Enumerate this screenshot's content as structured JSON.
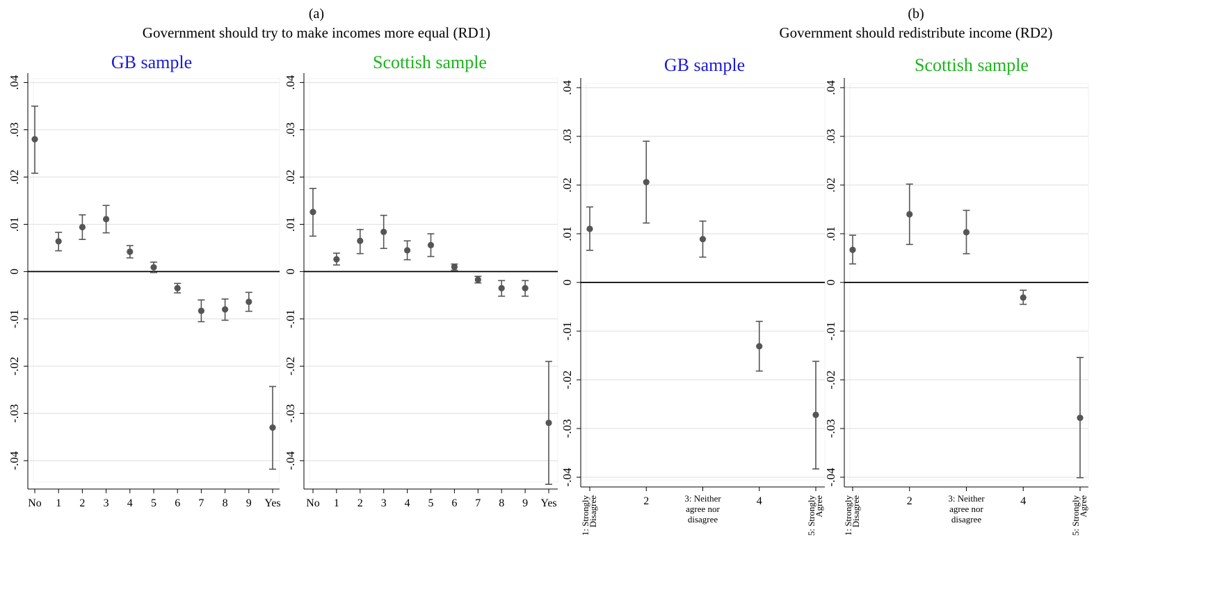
{
  "figure": {
    "panels": [
      {
        "letter": "(a)",
        "subtitle": "Government should try to make incomes more equal (RD1)"
      },
      {
        "letter": "(b)",
        "subtitle": "Government should redistribute income (RD2)"
      }
    ]
  },
  "colors": {
    "gb": "#1a1adb",
    "scottish": "#1bb51b",
    "marker": "#555555",
    "grid": "#e3e3e3",
    "axis": "#000000"
  },
  "chart_data": [
    {
      "type": "scatter",
      "title": "GB sample",
      "title_color": "#1a1adb",
      "categories": [
        "No",
        "1",
        "2",
        "3",
        "4",
        "5",
        "6",
        "7",
        "8",
        "9",
        "Yes"
      ],
      "values": [
        0.028,
        0.0064,
        0.0094,
        0.0111,
        0.0042,
        0.0009,
        -0.0035,
        -0.0083,
        -0.008,
        -0.0064,
        -0.033
      ],
      "ci_low": [
        0.0208,
        0.0044,
        0.0068,
        0.0082,
        0.0029,
        -0.0002,
        -0.0045,
        -0.0106,
        -0.0103,
        -0.0084,
        -0.0418
      ],
      "ci_high": [
        0.035,
        0.0083,
        0.012,
        0.014,
        0.0055,
        0.002,
        -0.0025,
        -0.006,
        -0.0058,
        -0.0044,
        -0.0243
      ],
      "yticks": [
        ".04",
        ".03",
        ".02",
        ".01",
        "0",
        "-.01",
        "-.02",
        "-.03",
        "-.04"
      ],
      "ylim": [
        -0.046,
        0.042
      ],
      "grid": true,
      "zero_line": true
    },
    {
      "type": "scatter",
      "title": "Scottish sample",
      "title_color": "#1bb51b",
      "categories": [
        "No",
        "1",
        "2",
        "3",
        "4",
        "5",
        "6",
        "7",
        "8",
        "9",
        "Yes"
      ],
      "values": [
        0.0126,
        0.0026,
        0.0065,
        0.0084,
        0.0045,
        0.0056,
        0.001,
        -0.0017,
        -0.0035,
        -0.0035,
        -0.032
      ],
      "ci_low": [
        0.0075,
        0.0014,
        0.0038,
        0.0049,
        0.0025,
        0.0032,
        0.0003,
        -0.0024,
        -0.0052,
        -0.0052,
        -0.045
      ],
      "ci_high": [
        0.0176,
        0.0039,
        0.0089,
        0.0119,
        0.0065,
        0.008,
        0.0016,
        -0.001,
        -0.0019,
        -0.0019,
        -0.019
      ],
      "yticks": [
        ".04",
        ".03",
        ".02",
        ".01",
        "0",
        "-.01",
        "-.02",
        "-.03",
        "-.04"
      ],
      "ylim": [
        -0.046,
        0.042
      ],
      "grid": true,
      "zero_line": true
    },
    {
      "type": "scatter",
      "title": "GB sample",
      "title_color": "#1a1adb",
      "categories": [
        "1: Strongly Disagree",
        "2",
        "3: Neither agree nor disagree",
        "4",
        "5: Strongly Agree"
      ],
      "values": [
        0.011,
        0.0206,
        0.0089,
        -0.0131,
        -0.0272
      ],
      "ci_low": [
        0.0066,
        0.0122,
        0.0052,
        -0.0182,
        -0.0383
      ],
      "ci_high": [
        0.0155,
        0.029,
        0.0126,
        -0.008,
        -0.0162
      ],
      "yticks": [
        ".04",
        ".03",
        ".02",
        ".01",
        "0",
        "-.01",
        "-.02",
        "-.03",
        "-.04"
      ],
      "ylim": [
        -0.042,
        0.042
      ],
      "grid": true,
      "zero_line": true
    },
    {
      "type": "scatter",
      "title": "Scottish sample",
      "title_color": "#1bb51b",
      "categories": [
        "1: Strongly Disagree",
        "2",
        "3: Neither agree nor disagree",
        "4",
        "5: Strongly Agree"
      ],
      "values": [
        0.0067,
        0.014,
        0.0103,
        -0.0031,
        -0.0278
      ],
      "ci_low": [
        0.0038,
        0.0078,
        0.0059,
        -0.0045,
        -0.0401
      ],
      "ci_high": [
        0.0097,
        0.0202,
        0.0148,
        -0.0016,
        -0.0154
      ],
      "yticks": [
        ".04",
        ".03",
        ".02",
        ".01",
        "0",
        "-.01",
        "-.02",
        "-.03",
        "-.04"
      ],
      "ylim": [
        -0.042,
        0.042
      ],
      "grid": true,
      "zero_line": true
    }
  ]
}
